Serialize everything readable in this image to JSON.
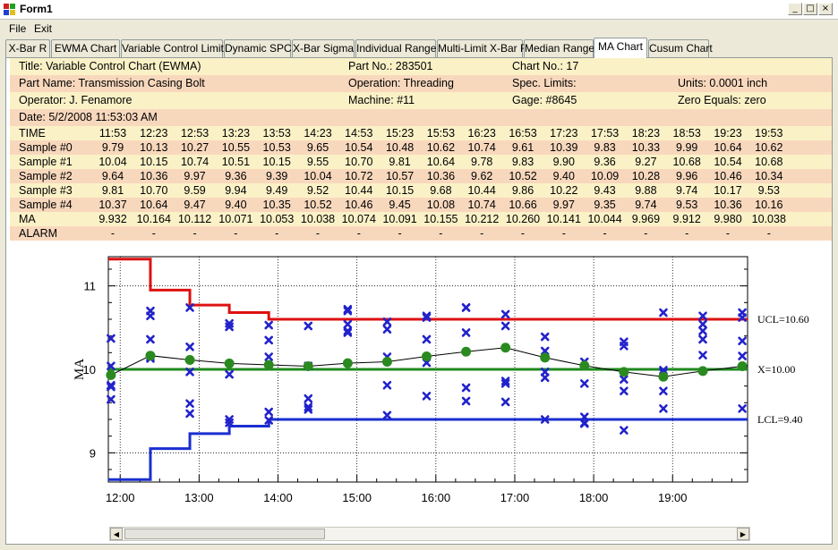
{
  "window": {
    "title": "Form1"
  },
  "menu": [
    "File",
    "Exit"
  ],
  "tabs": [
    {
      "label": "X-Bar R",
      "active": false
    },
    {
      "label": "EWMA Chart",
      "active": false
    },
    {
      "label": "Variable Control Limits",
      "active": false
    },
    {
      "label": "Dynamic SPC",
      "active": false
    },
    {
      "label": "X-Bar Sigma",
      "active": false
    },
    {
      "label": "Individual Range",
      "active": false
    },
    {
      "label": "Multi-Limit X-Bar R",
      "active": false
    },
    {
      "label": "Median Range",
      "active": false
    },
    {
      "label": "MA Chart",
      "active": true
    },
    {
      "label": "Cusum Chart",
      "active": false
    }
  ],
  "header": {
    "title": "Title: Variable Control Chart (EWMA)",
    "part_no": "Part No.: 283501",
    "chart_no": "Chart No.: 17",
    "part_name": "Part Name: Transmission Casing Bolt",
    "operation": "Operation: Threading",
    "spec_limits": "Spec. Limits:",
    "units": "Units: 0.0001 inch",
    "operator": "Operator: J. Fenamore",
    "machine": "Machine: #11",
    "gage": "Gage: #8645",
    "zero_equals": "Zero Equals: zero",
    "date": "Date: 5/2/2008 11:53:03 AM"
  },
  "table": {
    "rows": [
      {
        "label": "TIME",
        "cells": [
          "11:53",
          "12:23",
          "12:53",
          "13:23",
          "13:53",
          "14:23",
          "14:53",
          "15:23",
          "15:53",
          "16:23",
          "16:53",
          "17:23",
          "17:53",
          "18:23",
          "18:53",
          "19:23",
          "19:53"
        ]
      },
      {
        "label": "Sample #0",
        "cells": [
          "9.79",
          "10.13",
          "10.27",
          "10.55",
          "10.53",
          "9.65",
          "10.54",
          "10.48",
          "10.62",
          "10.74",
          "9.61",
          "10.39",
          "9.83",
          "10.33",
          "9.99",
          "10.64",
          "10.62"
        ]
      },
      {
        "label": "Sample #1",
        "cells": [
          "10.04",
          "10.15",
          "10.74",
          "10.51",
          "10.15",
          "9.55",
          "10.70",
          "9.81",
          "10.64",
          "9.78",
          "9.83",
          "9.90",
          "9.36",
          "9.27",
          "10.68",
          "10.54",
          "10.68"
        ]
      },
      {
        "label": "Sample #2",
        "cells": [
          "9.64",
          "10.36",
          "9.97",
          "9.36",
          "9.39",
          "10.04",
          "10.72",
          "10.57",
          "10.36",
          "9.62",
          "10.52",
          "9.40",
          "10.09",
          "10.28",
          "9.96",
          "10.46",
          "10.34"
        ]
      },
      {
        "label": "Sample #3",
        "cells": [
          "9.81",
          "10.70",
          "9.59",
          "9.94",
          "9.49",
          "9.52",
          "10.44",
          "10.15",
          "9.68",
          "10.44",
          "9.86",
          "10.22",
          "9.43",
          "9.88",
          "9.74",
          "10.17",
          "9.53"
        ]
      },
      {
        "label": "Sample #4",
        "cells": [
          "10.37",
          "10.64",
          "9.47",
          "9.40",
          "10.35",
          "10.52",
          "10.46",
          "9.45",
          "10.08",
          "10.74",
          "10.66",
          "9.97",
          "9.35",
          "9.74",
          "9.53",
          "10.36",
          "10.16"
        ]
      },
      {
        "label": "MA",
        "cells": [
          "9.932",
          "10.164",
          "10.112",
          "10.071",
          "10.053",
          "10.038",
          "10.074",
          "10.091",
          "10.155",
          "10.212",
          "10.260",
          "10.141",
          "10.044",
          "9.969",
          "9.912",
          "9.980",
          "10.038"
        ]
      },
      {
        "label": "ALARM",
        "cells": [
          "-",
          "-",
          "-",
          "-",
          "-",
          "-",
          "-",
          "-",
          "-",
          "-",
          "-",
          "-",
          "-",
          "-",
          "-",
          "-",
          "-"
        ]
      }
    ]
  },
  "chart_data": {
    "type": "line",
    "ylabel": "MA",
    "ylim": [
      8.65,
      11.35
    ],
    "yticks": [
      "9",
      "10",
      "11"
    ],
    "xlim": [
      11.85,
      19.95
    ],
    "xticks": [
      "12:00",
      "13:00",
      "14:00",
      "15:00",
      "16:00",
      "17:00",
      "18:00",
      "19:00"
    ],
    "x_hours": [
      11.883,
      12.383,
      12.883,
      13.383,
      13.883,
      14.383,
      14.883,
      15.383,
      15.883,
      16.383,
      16.883,
      17.383,
      17.883,
      18.383,
      18.883,
      19.383,
      19.883
    ],
    "ma": [
      9.932,
      10.164,
      10.112,
      10.071,
      10.053,
      10.038,
      10.074,
      10.091,
      10.155,
      10.212,
      10.26,
      10.141,
      10.044,
      9.969,
      9.912,
      9.98,
      10.038
    ],
    "ucl_steps": [
      11.32,
      10.95,
      10.77,
      10.68,
      10.6
    ],
    "lcl_steps": [
      8.68,
      9.05,
      9.23,
      9.32,
      9.4
    ],
    "center": 10.0,
    "annotations": {
      "ucl": "UCL=10.60",
      "center": "X=10.00",
      "lcl": "LCL=9.40"
    },
    "colors": {
      "ucl": "#dd1111",
      "lcl": "#1a2fd0",
      "center": "#1e8a1e",
      "ma": "#000000",
      "ma_marker": "#2a8a20",
      "sample_marker": "#2222cc"
    }
  }
}
